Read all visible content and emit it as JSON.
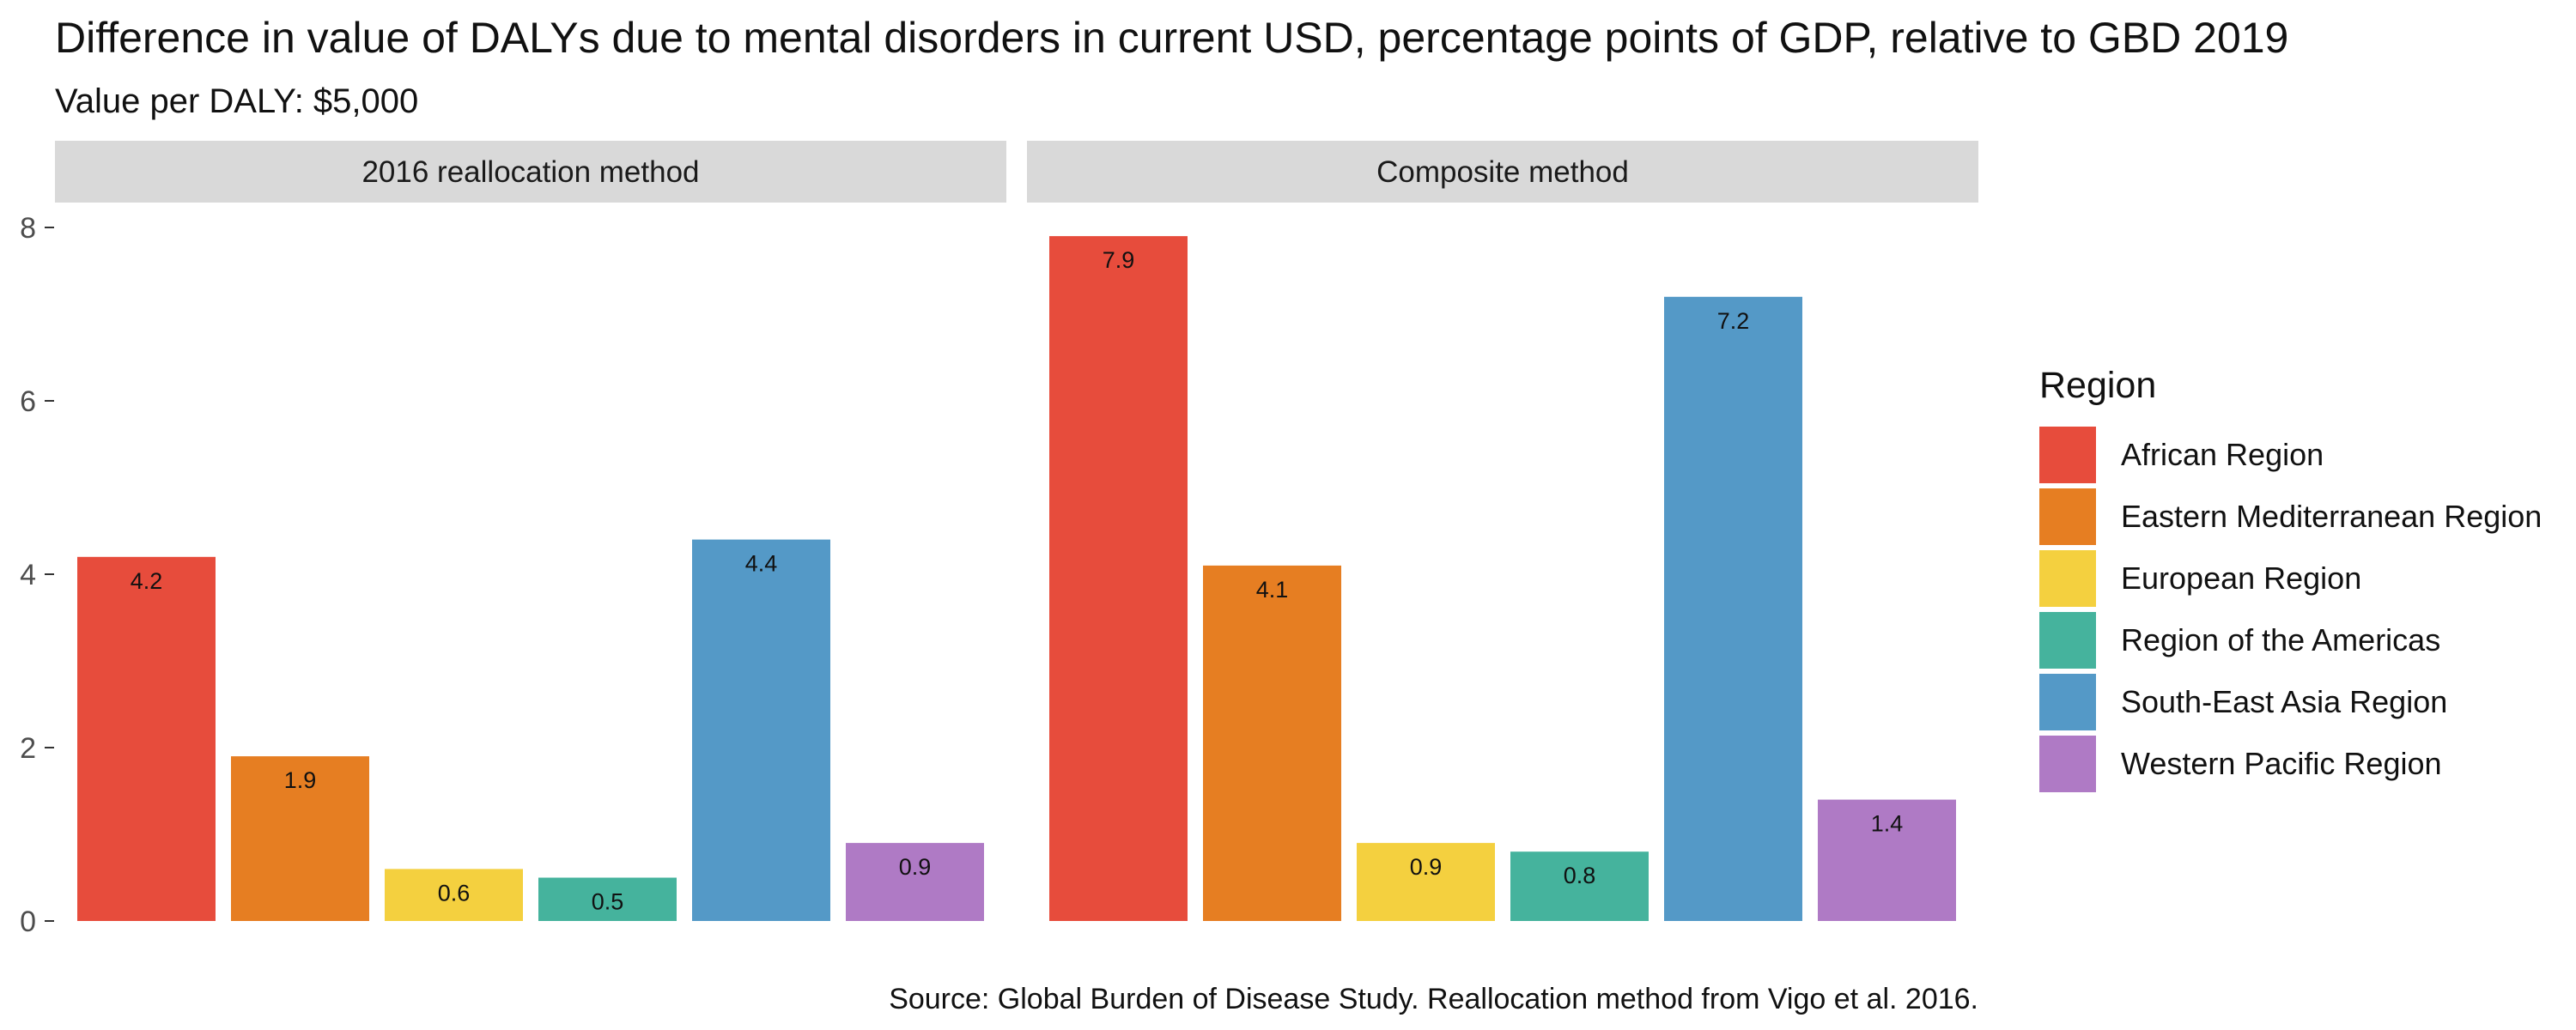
{
  "chart_data": {
    "type": "bar",
    "title": "Difference in value of DALYs due to mental disorders in current USD, percentage points of GDP, relative to GBD 2019",
    "subtitle": "Value per DALY: $5,000",
    "caption": "Source: Global Burden of Disease Study. Reallocation method from Vigo et al. 2016.",
    "xlabel": "",
    "ylabel": "",
    "ylim": [
      0,
      8
    ],
    "yticks": [
      0,
      2,
      4,
      6,
      8
    ],
    "grid": false,
    "legend": {
      "title": "Region",
      "placement": "right",
      "entries": [
        {
          "label": "African Region",
          "color": "#E74C3C"
        },
        {
          "label": "Eastern Mediterranean Region",
          "color": "#E67E22"
        },
        {
          "label": "European Region",
          "color": "#F4D03F"
        },
        {
          "label": "Region of the Americas",
          "color": "#45B39D"
        },
        {
          "label": "South-East Asia Region",
          "color": "#5499C7"
        },
        {
          "label": "Western Pacific Region",
          "color": "#AF7AC5"
        }
      ]
    },
    "facets": [
      {
        "label": "2016 reallocation method",
        "values": [
          4.2,
          1.9,
          0.6,
          0.5,
          4.4,
          0.9
        ],
        "value_labels": [
          "4.2",
          "1.9",
          "0.6",
          "0.5",
          "4.4",
          "0.9"
        ]
      },
      {
        "label": "Composite method",
        "values": [
          7.9,
          4.1,
          0.9,
          0.8,
          7.2,
          1.4
        ],
        "value_labels": [
          "7.9",
          "4.1",
          "0.9",
          "0.8",
          "7.2",
          "1.4"
        ]
      }
    ],
    "colors": {
      "strip_background": "#D9D9D9",
      "axis_tick": "#333333"
    }
  }
}
